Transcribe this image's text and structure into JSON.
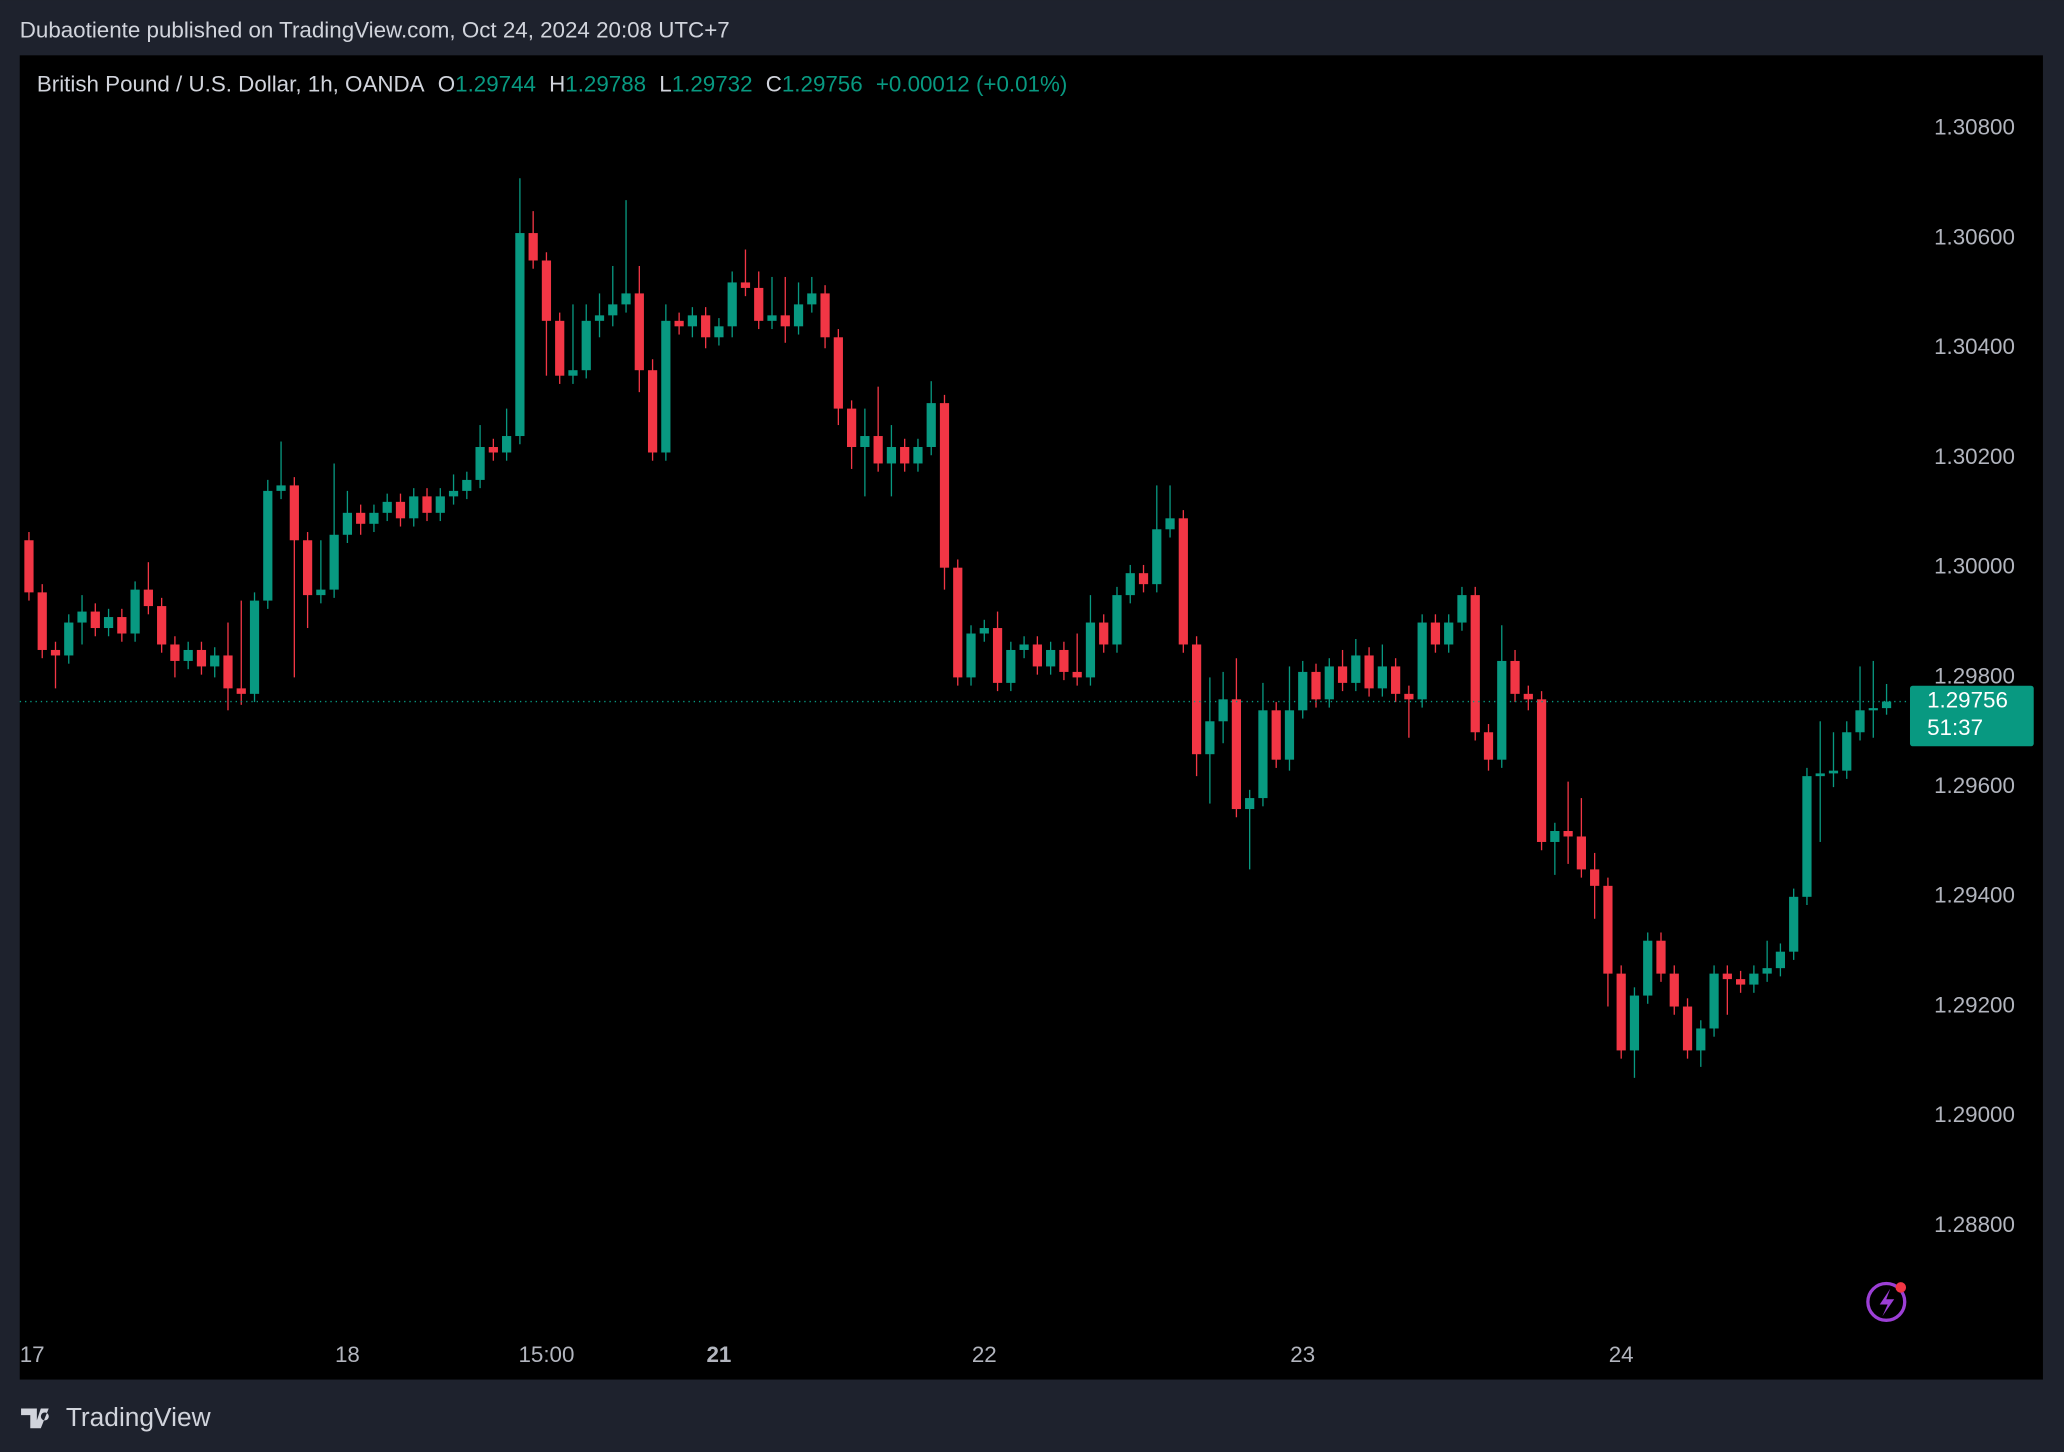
{
  "header": {
    "published": "Dubaotiente published on TradingView.com, Oct 24, 2024 20:08 UTC+7"
  },
  "footer": {
    "brand": "TradingView"
  },
  "chart_data": {
    "type": "candlestick",
    "symbol": "British Pound / U.S. Dollar, 1h, OANDA",
    "ohlc_letters": [
      "O",
      "H",
      "L",
      "C"
    ],
    "change_label": "+0.00012 (+0.01%)",
    "countdown": "51:37",
    "up_color": "#089981",
    "down_color": "#f23645",
    "ylim": [
      1.2852,
      1.30934
    ],
    "yticks": [
      {
        "value": 1.288,
        "label": "1.28800"
      },
      {
        "value": 1.29,
        "label": "1.29000"
      },
      {
        "value": 1.292,
        "label": "1.29200"
      },
      {
        "value": 1.294,
        "label": "1.29400"
      },
      {
        "value": 1.296,
        "label": "1.29600"
      },
      {
        "value": 1.298,
        "label": "1.29800"
      },
      {
        "value": 1.3,
        "label": "1.30000"
      },
      {
        "value": 1.302,
        "label": "1.30200"
      },
      {
        "value": 1.304,
        "label": "1.30400"
      },
      {
        "value": 1.306,
        "label": "1.30600"
      },
      {
        "value": 1.308,
        "label": "1.30800"
      }
    ],
    "categories": [
      "17",
      null,
      null,
      null,
      null,
      null,
      null,
      null,
      null,
      null,
      null,
      null,
      null,
      null,
      null,
      null,
      null,
      null,
      null,
      null,
      null,
      null,
      null,
      null,
      "18",
      null,
      null,
      null,
      null,
      null,
      null,
      null,
      null,
      null,
      null,
      null,
      null,
      null,
      null,
      "15:00",
      null,
      null,
      null,
      null,
      null,
      null,
      null,
      null,
      null,
      null,
      null,
      null,
      "21",
      null,
      null,
      null,
      null,
      null,
      null,
      null,
      null,
      null,
      null,
      null,
      null,
      null,
      null,
      null,
      null,
      null,
      null,
      null,
      "22",
      null,
      null,
      null,
      null,
      null,
      null,
      null,
      null,
      null,
      null,
      null,
      null,
      null,
      null,
      null,
      null,
      null,
      null,
      null,
      null,
      null,
      null,
      null,
      "23",
      null,
      null,
      null,
      null,
      null,
      null,
      null,
      null,
      null,
      null,
      null,
      null,
      null,
      null,
      null,
      null,
      null,
      null,
      null,
      null,
      null,
      null,
      null,
      "24",
      null,
      null,
      null,
      null,
      null,
      null,
      null,
      null,
      null,
      null,
      null,
      null,
      null,
      null,
      null,
      null,
      null,
      null,
      null,
      null
    ],
    "open": [
      1.3005,
      1.29955,
      1.2985,
      1.2984,
      1.299,
      1.2992,
      1.2989,
      1.2991,
      1.2988,
      1.2996,
      1.2993,
      1.2986,
      1.2983,
      1.2985,
      1.2982,
      1.2984,
      1.2978,
      1.2977,
      1.2994,
      1.3014,
      1.3015,
      1.3005,
      1.2995,
      1.2996,
      1.3006,
      1.301,
      1.3008,
      1.301,
      1.3012,
      1.3009,
      1.3013,
      1.301,
      1.3013,
      1.3014,
      1.3016,
      1.3022,
      1.3021,
      1.3024,
      1.3061,
      1.3056,
      1.3045,
      1.3035,
      1.3036,
      1.3045,
      1.3046,
      1.3048,
      1.305,
      1.3036,
      1.3021,
      1.3045,
      1.3044,
      1.3046,
      1.3042,
      1.3044,
      1.3052,
      1.3051,
      1.3045,
      1.3046,
      1.3044,
      1.3048,
      1.305,
      1.3042,
      1.3029,
      1.3022,
      1.3024,
      1.3019,
      1.3022,
      1.3019,
      1.3022,
      1.303,
      1.3,
      1.298,
      1.2988,
      1.2989,
      1.2979,
      1.2985,
      1.2986,
      1.2982,
      1.2985,
      1.2981,
      1.298,
      1.299,
      1.2986,
      1.2995,
      1.2999,
      1.2997,
      1.3007,
      1.3009,
      1.2986,
      1.2966,
      1.2972,
      1.2976,
      1.2956,
      1.2958,
      1.2974,
      1.2965,
      1.2974,
      1.2981,
      1.2976,
      1.2982,
      1.2979,
      1.2984,
      1.2978,
      1.2982,
      1.2977,
      1.2976,
      1.299,
      1.2986,
      1.299,
      1.2995,
      1.297,
      1.2965,
      1.2983,
      1.2977,
      1.2976,
      1.295,
      1.2952,
      1.2951,
      1.2945,
      1.2942,
      1.2926,
      1.2912,
      1.2922,
      1.2932,
      1.2926,
      1.292,
      1.2912,
      1.2916,
      1.2926,
      1.2925,
      1.2924,
      1.2926,
      1.2927,
      1.293,
      1.294,
      1.2962,
      1.29625,
      1.2963,
      1.297,
      1.2974,
      1.29744
    ],
    "high": [
      1.30065,
      1.2997,
      1.29865,
      1.29915,
      1.2995,
      1.29935,
      1.29925,
      1.29925,
      1.29975,
      1.3001,
      1.29945,
      1.29875,
      1.29865,
      1.29865,
      1.29855,
      1.299,
      1.2994,
      1.29955,
      1.3016,
      1.3023,
      1.30165,
      1.30065,
      1.3005,
      1.3019,
      1.3014,
      1.30115,
      1.30115,
      1.30135,
      1.30135,
      1.30145,
      1.30145,
      1.30145,
      1.3017,
      1.30175,
      1.3026,
      1.30235,
      1.3029,
      1.3071,
      1.3065,
      1.30575,
      1.30465,
      1.3048,
      1.3048,
      1.305,
      1.3055,
      1.3067,
      1.3055,
      1.3038,
      1.3048,
      1.30465,
      1.30475,
      1.30475,
      1.30455,
      1.3054,
      1.3058,
      1.3054,
      1.3053,
      1.3053,
      1.3052,
      1.3053,
      1.30515,
      1.30435,
      1.30305,
      1.3029,
      1.3033,
      1.3026,
      1.30235,
      1.30235,
      1.3034,
      1.30315,
      1.30015,
      1.29895,
      1.29905,
      1.2992,
      1.29865,
      1.29875,
      1.29875,
      1.29865,
      1.29865,
      1.2988,
      1.2995,
      1.29915,
      1.29965,
      1.30005,
      1.30005,
      1.3015,
      1.3015,
      1.30105,
      1.29875,
      1.298,
      1.2981,
      1.29835,
      1.29595,
      1.2979,
      1.29755,
      1.2982,
      1.2983,
      1.29825,
      1.29835,
      1.2985,
      1.2987,
      1.29855,
      1.2986,
      1.29835,
      1.29785,
      1.29915,
      1.29915,
      1.29915,
      1.29965,
      1.29965,
      1.29715,
      1.29895,
      1.2985,
      1.29785,
      1.29775,
      1.29535,
      1.2961,
      1.2958,
      1.2948,
      1.29435,
      1.29275,
      1.29235,
      1.29335,
      1.29335,
      1.29275,
      1.29215,
      1.29175,
      1.29275,
      1.29275,
      1.29265,
      1.29275,
      1.2932,
      1.29315,
      1.29415,
      1.29635,
      1.2972,
      1.297,
      1.2972,
      1.2982,
      1.2983,
      1.29788
    ],
    "low": [
      1.2994,
      1.29835,
      1.2978,
      1.29825,
      1.2986,
      1.29875,
      1.29875,
      1.29865,
      1.29865,
      1.29915,
      1.29845,
      1.298,
      1.29815,
      1.29805,
      1.298,
      1.2974,
      1.2975,
      1.29755,
      1.29925,
      1.30125,
      1.298,
      1.2989,
      1.29935,
      1.29945,
      1.30045,
      1.3006,
      1.30065,
      1.30085,
      1.30075,
      1.30075,
      1.30085,
      1.30085,
      1.30115,
      1.30125,
      1.30145,
      1.30195,
      1.30195,
      1.30225,
      1.30545,
      1.3035,
      1.30335,
      1.30335,
      1.30345,
      1.3042,
      1.3044,
      1.30465,
      1.3032,
      1.30195,
      1.30195,
      1.30425,
      1.3042,
      1.304,
      1.30405,
      1.3042,
      1.30495,
      1.30435,
      1.30435,
      1.3041,
      1.30425,
      1.30465,
      1.304,
      1.3026,
      1.3018,
      1.3013,
      1.30175,
      1.3013,
      1.30175,
      1.30175,
      1.30205,
      1.2996,
      1.29785,
      1.29785,
      1.29865,
      1.29775,
      1.29775,
      1.29835,
      1.29805,
      1.29805,
      1.29795,
      1.29785,
      1.29785,
      1.29845,
      1.29845,
      1.29935,
      1.29955,
      1.29955,
      1.30055,
      1.29845,
      1.2962,
      1.2957,
      1.2968,
      1.29545,
      1.2945,
      1.29565,
      1.29635,
      1.2963,
      1.29725,
      1.29745,
      1.29745,
      1.29775,
      1.29775,
      1.29765,
      1.29765,
      1.29755,
      1.2969,
      1.29745,
      1.29845,
      1.29845,
      1.29885,
      1.29685,
      1.2963,
      1.29635,
      1.29755,
      1.2974,
      1.29485,
      1.2944,
      1.2946,
      1.29435,
      1.2936,
      1.292,
      1.29105,
      1.2907,
      1.29205,
      1.29245,
      1.29185,
      1.29105,
      1.2909,
      1.29145,
      1.29185,
      1.29225,
      1.29225,
      1.29245,
      1.29255,
      1.29285,
      1.29385,
      1.295,
      1.296,
      1.29615,
      1.29685,
      1.2969,
      1.29732
    ],
    "close": [
      1.29955,
      1.2985,
      1.2984,
      1.299,
      1.2992,
      1.2989,
      1.2991,
      1.2988,
      1.2996,
      1.2993,
      1.2986,
      1.2983,
      1.2985,
      1.2982,
      1.2984,
      1.2978,
      1.2977,
      1.2994,
      1.3014,
      1.3015,
      1.3005,
      1.2995,
      1.2996,
      1.3006,
      1.301,
      1.3008,
      1.301,
      1.3012,
      1.3009,
      1.3013,
      1.301,
      1.3013,
      1.3014,
      1.3016,
      1.3022,
      1.3021,
      1.3024,
      1.3061,
      1.3056,
      1.3045,
      1.3035,
      1.3036,
      1.3045,
      1.3046,
      1.3048,
      1.305,
      1.3036,
      1.3021,
      1.3045,
      1.3044,
      1.3046,
      1.3042,
      1.3044,
      1.3052,
      1.3051,
      1.3045,
      1.3046,
      1.3044,
      1.3048,
      1.305,
      1.3042,
      1.3029,
      1.3022,
      1.3024,
      1.3019,
      1.3022,
      1.3019,
      1.3022,
      1.303,
      1.3,
      1.298,
      1.2988,
      1.2989,
      1.2979,
      1.2985,
      1.2986,
      1.2982,
      1.2985,
      1.2981,
      1.298,
      1.299,
      1.2986,
      1.2995,
      1.2999,
      1.2997,
      1.3007,
      1.3009,
      1.2986,
      1.2966,
      1.2972,
      1.2976,
      1.2956,
      1.2958,
      1.2974,
      1.2965,
      1.2974,
      1.2981,
      1.2976,
      1.2982,
      1.2979,
      1.2984,
      1.2978,
      1.2982,
      1.2977,
      1.2976,
      1.299,
      1.2986,
      1.299,
      1.2995,
      1.297,
      1.2965,
      1.2983,
      1.2977,
      1.2976,
      1.295,
      1.2952,
      1.2951,
      1.2945,
      1.2942,
      1.2926,
      1.2912,
      1.2922,
      1.2932,
      1.2926,
      1.292,
      1.2912,
      1.2916,
      1.2926,
      1.2925,
      1.2924,
      1.2926,
      1.2927,
      1.293,
      1.294,
      1.2962,
      1.29625,
      1.2963,
      1.297,
      1.2974,
      1.29744,
      1.29756
    ]
  }
}
